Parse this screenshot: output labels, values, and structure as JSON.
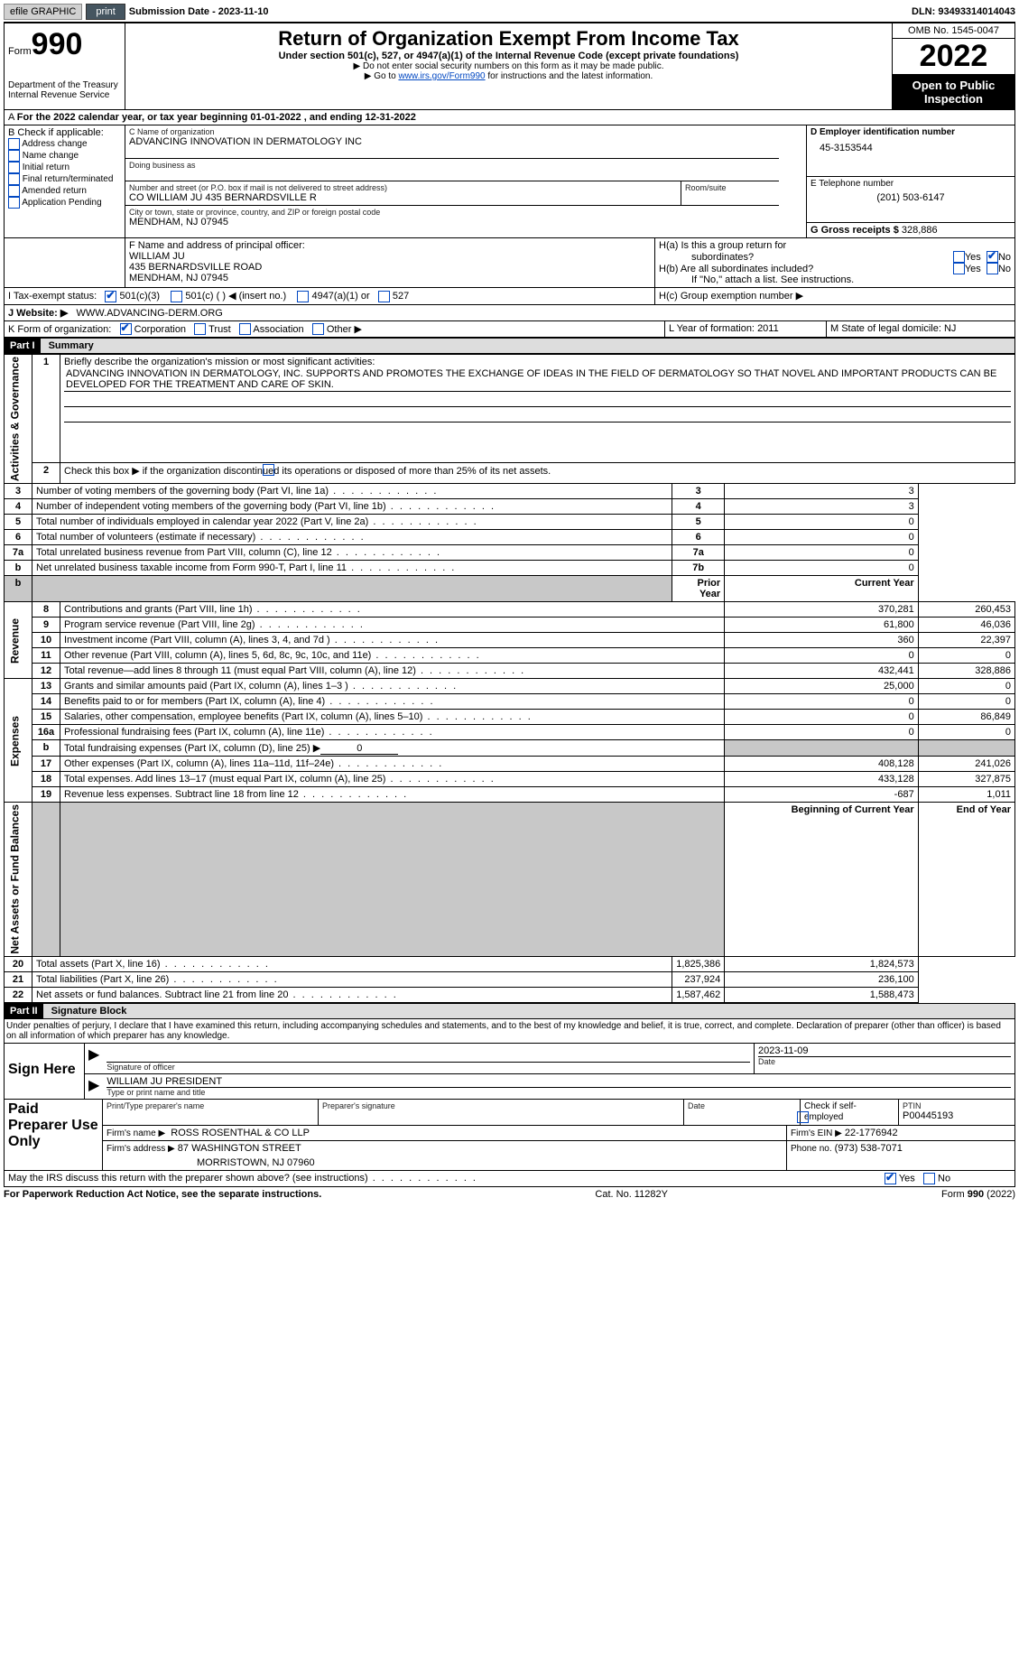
{
  "topbar": {
    "efile_label": "efile GRAPHIC",
    "print_label": "print",
    "sub_date_label": "Submission Date - 2023-11-10",
    "dln_label": "DLN: 93493314014043"
  },
  "header": {
    "form_word": "Form",
    "form_no": "990",
    "dept": "Department of the Treasury",
    "irs": "Internal Revenue Service",
    "title": "Return of Organization Exempt From Income Tax",
    "subtitle": "Under section 501(c), 527, or 4947(a)(1) of the Internal Revenue Code (except private foundations)",
    "note1": "Do not enter social security numbers on this form as it may be made public.",
    "note2_pre": "Go to ",
    "note2_link": "www.irs.gov/Form990",
    "note2_post": " for instructions and the latest information.",
    "omb": "OMB No. 1545-0047",
    "year": "2022",
    "open": "Open to Public Inspection"
  },
  "line_a": "For the 2022 calendar year, or tax year beginning 01-01-2022    , and ending 12-31-2022",
  "box_b": {
    "title": "B Check if applicable:",
    "items": [
      "Address change",
      "Name change",
      "Initial return",
      "Final return/terminated",
      "Amended return",
      "Application Pending"
    ]
  },
  "box_c": {
    "lbl_name": "C Name of organization",
    "org": "ADVANCING INNOVATION IN DERMATOLOGY INC",
    "dba_lbl": "Doing business as",
    "addr_lbl": "Number and street (or P.O. box if mail is not delivered to street address)",
    "room_lbl": "Room/suite",
    "addr": "CO WILLIAM JU 435 BERNARDSVILLE R",
    "city_lbl": "City or town, state or province, country, and ZIP or foreign postal code",
    "city": "MENDHAM, NJ  07945"
  },
  "box_d": {
    "lbl": "D Employer identification number",
    "val": "45-3153544"
  },
  "box_e": {
    "lbl": "E Telephone number",
    "val": "(201) 503-6147"
  },
  "box_g": {
    "lbl": "G Gross receipts $",
    "val": "328,886"
  },
  "box_f": {
    "lbl": "F  Name and address of principal officer:",
    "name": "WILLIAM JU",
    "addr1": "435 BERNARDSVILLE ROAD",
    "addr2": "MENDHAM, NJ  07945"
  },
  "box_h": {
    "ha": "H(a)  Is this a group return for",
    "ha2": "subordinates?",
    "hb": "H(b)  Are all subordinates included?",
    "hb_note": "If \"No,\" attach a list. See instructions.",
    "hc": "H(c)  Group exemption number ▶",
    "yes": "Yes",
    "no": "No"
  },
  "line_i": {
    "lbl": "I     Tax-exempt status:",
    "o1": "501(c)(3)",
    "o2": "501(c) (  ) ◀ (insert no.)",
    "o3": "4947(a)(1) or",
    "o4": "527"
  },
  "line_j": {
    "lbl": "J     Website: ▶",
    "val": "WWW.ADVANCING-DERM.ORG"
  },
  "line_k": {
    "lbl": "K Form of organization:",
    "o1": "Corporation",
    "o2": "Trust",
    "o3": "Association",
    "o4": "Other ▶"
  },
  "line_l": {
    "lbl": "L Year of formation:",
    "val": "2011"
  },
  "line_m": {
    "lbl": "M State of legal domicile:",
    "val": "NJ"
  },
  "part1": {
    "num": "Part I",
    "title": "Summary"
  },
  "sections": {
    "ag": "Activities & Governance",
    "rev": "Revenue",
    "exp": "Expenses",
    "na": "Net Assets or Fund Balances"
  },
  "s1": {
    "lbl": "Briefly describe the organization's mission or most significant activities:",
    "txt": "ADVANCING INNOVATION IN DERMATOLOGY, INC. SUPPORTS AND PROMOTES THE EXCHANGE OF IDEAS IN THE FIELD OF DERMATOLOGY SO THAT NOVEL AND IMPORTANT PRODUCTS CAN BE DEVELOPED FOR THE TREATMENT AND CARE OF SKIN."
  },
  "s2": "Check this box ▶        if the organization discontinued its operations or disposed of more than 25% of its net assets.",
  "lines3_7": [
    {
      "n": "3",
      "t": "Number of voting members of the governing body (Part VI, line 1a)",
      "b": "3",
      "v": "3"
    },
    {
      "n": "4",
      "t": "Number of independent voting members of the governing body (Part VI, line 1b)",
      "b": "4",
      "v": "3"
    },
    {
      "n": "5",
      "t": "Total number of individuals employed in calendar year 2022 (Part V, line 2a)",
      "b": "5",
      "v": "0"
    },
    {
      "n": "6",
      "t": "Total number of volunteers (estimate if necessary)",
      "b": "6",
      "v": "0"
    },
    {
      "n": "7a",
      "t": "Total unrelated business revenue from Part VIII, column (C), line 12",
      "b": "7a",
      "v": "0"
    },
    {
      "n": "b",
      "t": "Net unrelated business taxable income from Form 990-T, Part I, line 11",
      "b": "7b",
      "v": "0"
    }
  ],
  "col_py": "Prior Year",
  "col_cy": "Current Year",
  "rev_lines": [
    {
      "n": "8",
      "t": "Contributions and grants (Part VIII, line 1h)",
      "py": "370,281",
      "cy": "260,453"
    },
    {
      "n": "9",
      "t": "Program service revenue (Part VIII, line 2g)",
      "py": "61,800",
      "cy": "46,036"
    },
    {
      "n": "10",
      "t": "Investment income (Part VIII, column (A), lines 3, 4, and 7d )",
      "py": "360",
      "cy": "22,397"
    },
    {
      "n": "11",
      "t": "Other revenue (Part VIII, column (A), lines 5, 6d, 8c, 9c, 10c, and 11e)",
      "py": "0",
      "cy": "0"
    },
    {
      "n": "12",
      "t": "Total revenue—add lines 8 through 11 (must equal Part VIII, column (A), line 12)",
      "py": "432,441",
      "cy": "328,886"
    }
  ],
  "exp_lines": [
    {
      "n": "13",
      "t": "Grants and similar amounts paid (Part IX, column (A), lines 1–3 )",
      "py": "25,000",
      "cy": "0"
    },
    {
      "n": "14",
      "t": "Benefits paid to or for members (Part IX, column (A), line 4)",
      "py": "0",
      "cy": "0"
    },
    {
      "n": "15",
      "t": "Salaries, other compensation, employee benefits (Part IX, column (A), lines 5–10)",
      "py": "0",
      "cy": "86,849"
    },
    {
      "n": "16a",
      "t": "Professional fundraising fees (Part IX, column (A), line 11e)",
      "py": "0",
      "cy": "0"
    }
  ],
  "line16b": {
    "n": "b",
    "t": "Total fundraising expenses (Part IX, column (D), line 25) ▶",
    "v": "0"
  },
  "exp_lines2": [
    {
      "n": "17",
      "t": "Other expenses (Part IX, column (A), lines 11a–11d, 11f–24e)",
      "py": "408,128",
      "cy": "241,026"
    },
    {
      "n": "18",
      "t": "Total expenses. Add lines 13–17 (must equal Part IX, column (A), line 25)",
      "py": "433,128",
      "cy": "327,875"
    },
    {
      "n": "19",
      "t": "Revenue less expenses. Subtract line 18 from line 12",
      "py": "-687",
      "cy": "1,011"
    }
  ],
  "col_boy": "Beginning of Current Year",
  "col_eoy": "End of Year",
  "na_lines": [
    {
      "n": "20",
      "t": "Total assets (Part X, line 16)",
      "py": "1,825,386",
      "cy": "1,824,573"
    },
    {
      "n": "21",
      "t": "Total liabilities (Part X, line 26)",
      "py": "237,924",
      "cy": "236,100"
    },
    {
      "n": "22",
      "t": "Net assets or fund balances. Subtract line 21 from line 20",
      "py": "1,587,462",
      "cy": "1,588,473"
    }
  ],
  "part2": {
    "num": "Part II",
    "title": "Signature Block"
  },
  "penalty": "Under penalties of perjury, I declare that I have examined this return, including accompanying schedules and statements, and to the best of my knowledge and belief, it is true, correct, and complete. Declaration of preparer (other than officer) is based on all information of which preparer has any knowledge.",
  "sign": {
    "here": "Sign Here",
    "sig_lbl": "Signature of officer",
    "date": "2023-11-09",
    "date_lbl": "Date",
    "name": "WILLIAM JU PRESIDENT",
    "name_lbl": "Type or print name and title"
  },
  "prep": {
    "title": "Paid Preparer Use Only",
    "c1": "Print/Type preparer's name",
    "c2": "Preparer's signature",
    "c3": "Date",
    "c4_pre": "Check         if self-employed",
    "ptin_lbl": "PTIN",
    "ptin": "P00445193",
    "firm_lbl": "Firm's name     ▶",
    "firm": "ROSS ROSENTHAL & CO LLP",
    "ein_lbl": "Firm's EIN ▶",
    "ein": "22-1776942",
    "addr_lbl": "Firm's address ▶",
    "addr1": "87 WASHINGTON STREET",
    "addr2": "MORRISTOWN, NJ  07960",
    "phone_lbl": "Phone no.",
    "phone": "(973) 538-7071"
  },
  "discuss": {
    "q": "May the IRS discuss this return with the preparer shown above? (see instructions)",
    "yes": "Yes",
    "no": "No"
  },
  "footer": {
    "l": "For Paperwork Reduction Act Notice, see the separate instructions.",
    "c": "Cat. No. 11282Y",
    "r": "Form 990 (2022)"
  }
}
